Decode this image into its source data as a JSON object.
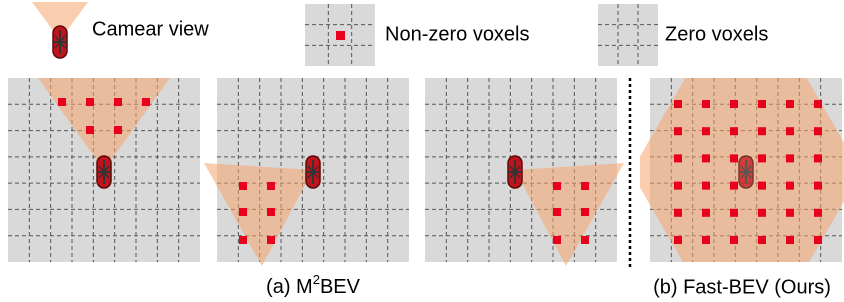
{
  "legend": {
    "camera": "Camear view",
    "nonzero": "Non-zero voxels",
    "zero": "Zero voxels"
  },
  "captions": {
    "a": {
      "prefix": "(a) M",
      "sup": "2",
      "suffix": "BEV"
    },
    "b": "(b) Fast-BEV (Ours)"
  }
}
